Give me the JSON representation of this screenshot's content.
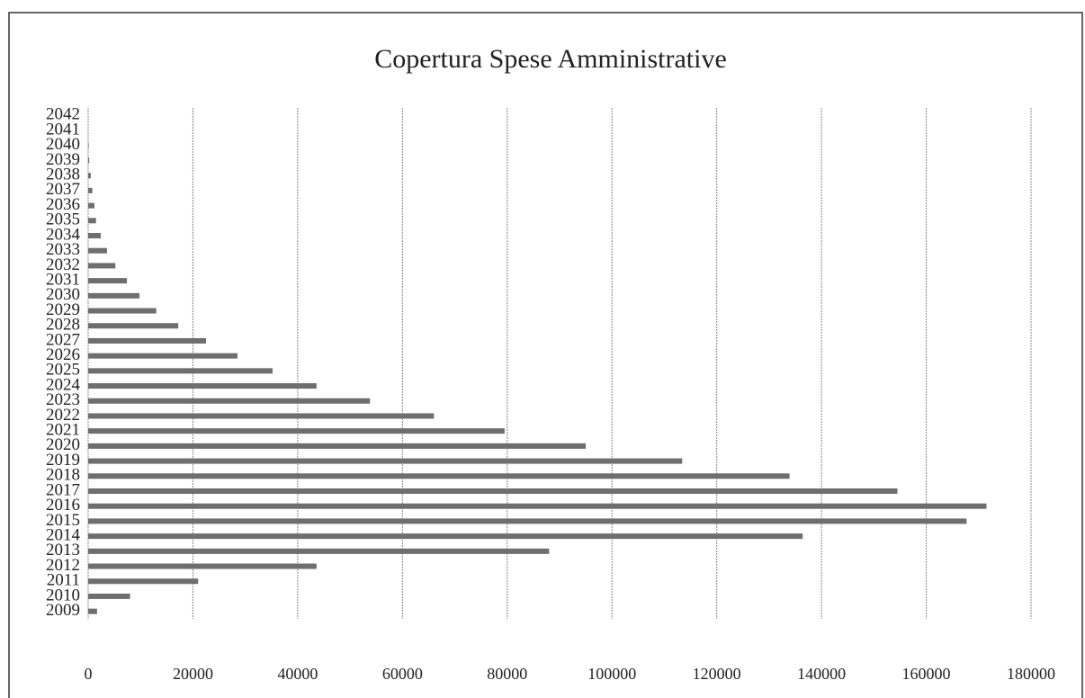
{
  "chart_data": {
    "type": "barh",
    "title": "Copertura Spese Amministrative",
    "categories": [
      "2009",
      "2010",
      "2011",
      "2012",
      "2013",
      "2014",
      "2015",
      "2016",
      "2017",
      "2018",
      "2019",
      "2020",
      "2021",
      "2022",
      "2023",
      "2024",
      "2025",
      "2026",
      "2027",
      "2028",
      "2029",
      "2030",
      "2031",
      "2032",
      "2033",
      "2034",
      "2035",
      "2036",
      "2037",
      "2038",
      "2039",
      "2040",
      "2041",
      "2042"
    ],
    "values": [
      1700,
      8000,
      21000,
      43600,
      88000,
      136400,
      167700,
      171500,
      154500,
      133900,
      113400,
      95000,
      79500,
      66000,
      53800,
      43600,
      35200,
      28500,
      22500,
      17200,
      13000,
      9800,
      7400,
      5200,
      3600,
      2400,
      1500,
      1200,
      800,
      500,
      200,
      100,
      0,
      0
    ],
    "color": "#6e6e6e",
    "xlim": [
      0,
      180000
    ],
    "xticks": [
      0,
      20000,
      40000,
      60000,
      80000,
      100000,
      120000,
      140000,
      160000,
      180000
    ],
    "grid": true
  }
}
